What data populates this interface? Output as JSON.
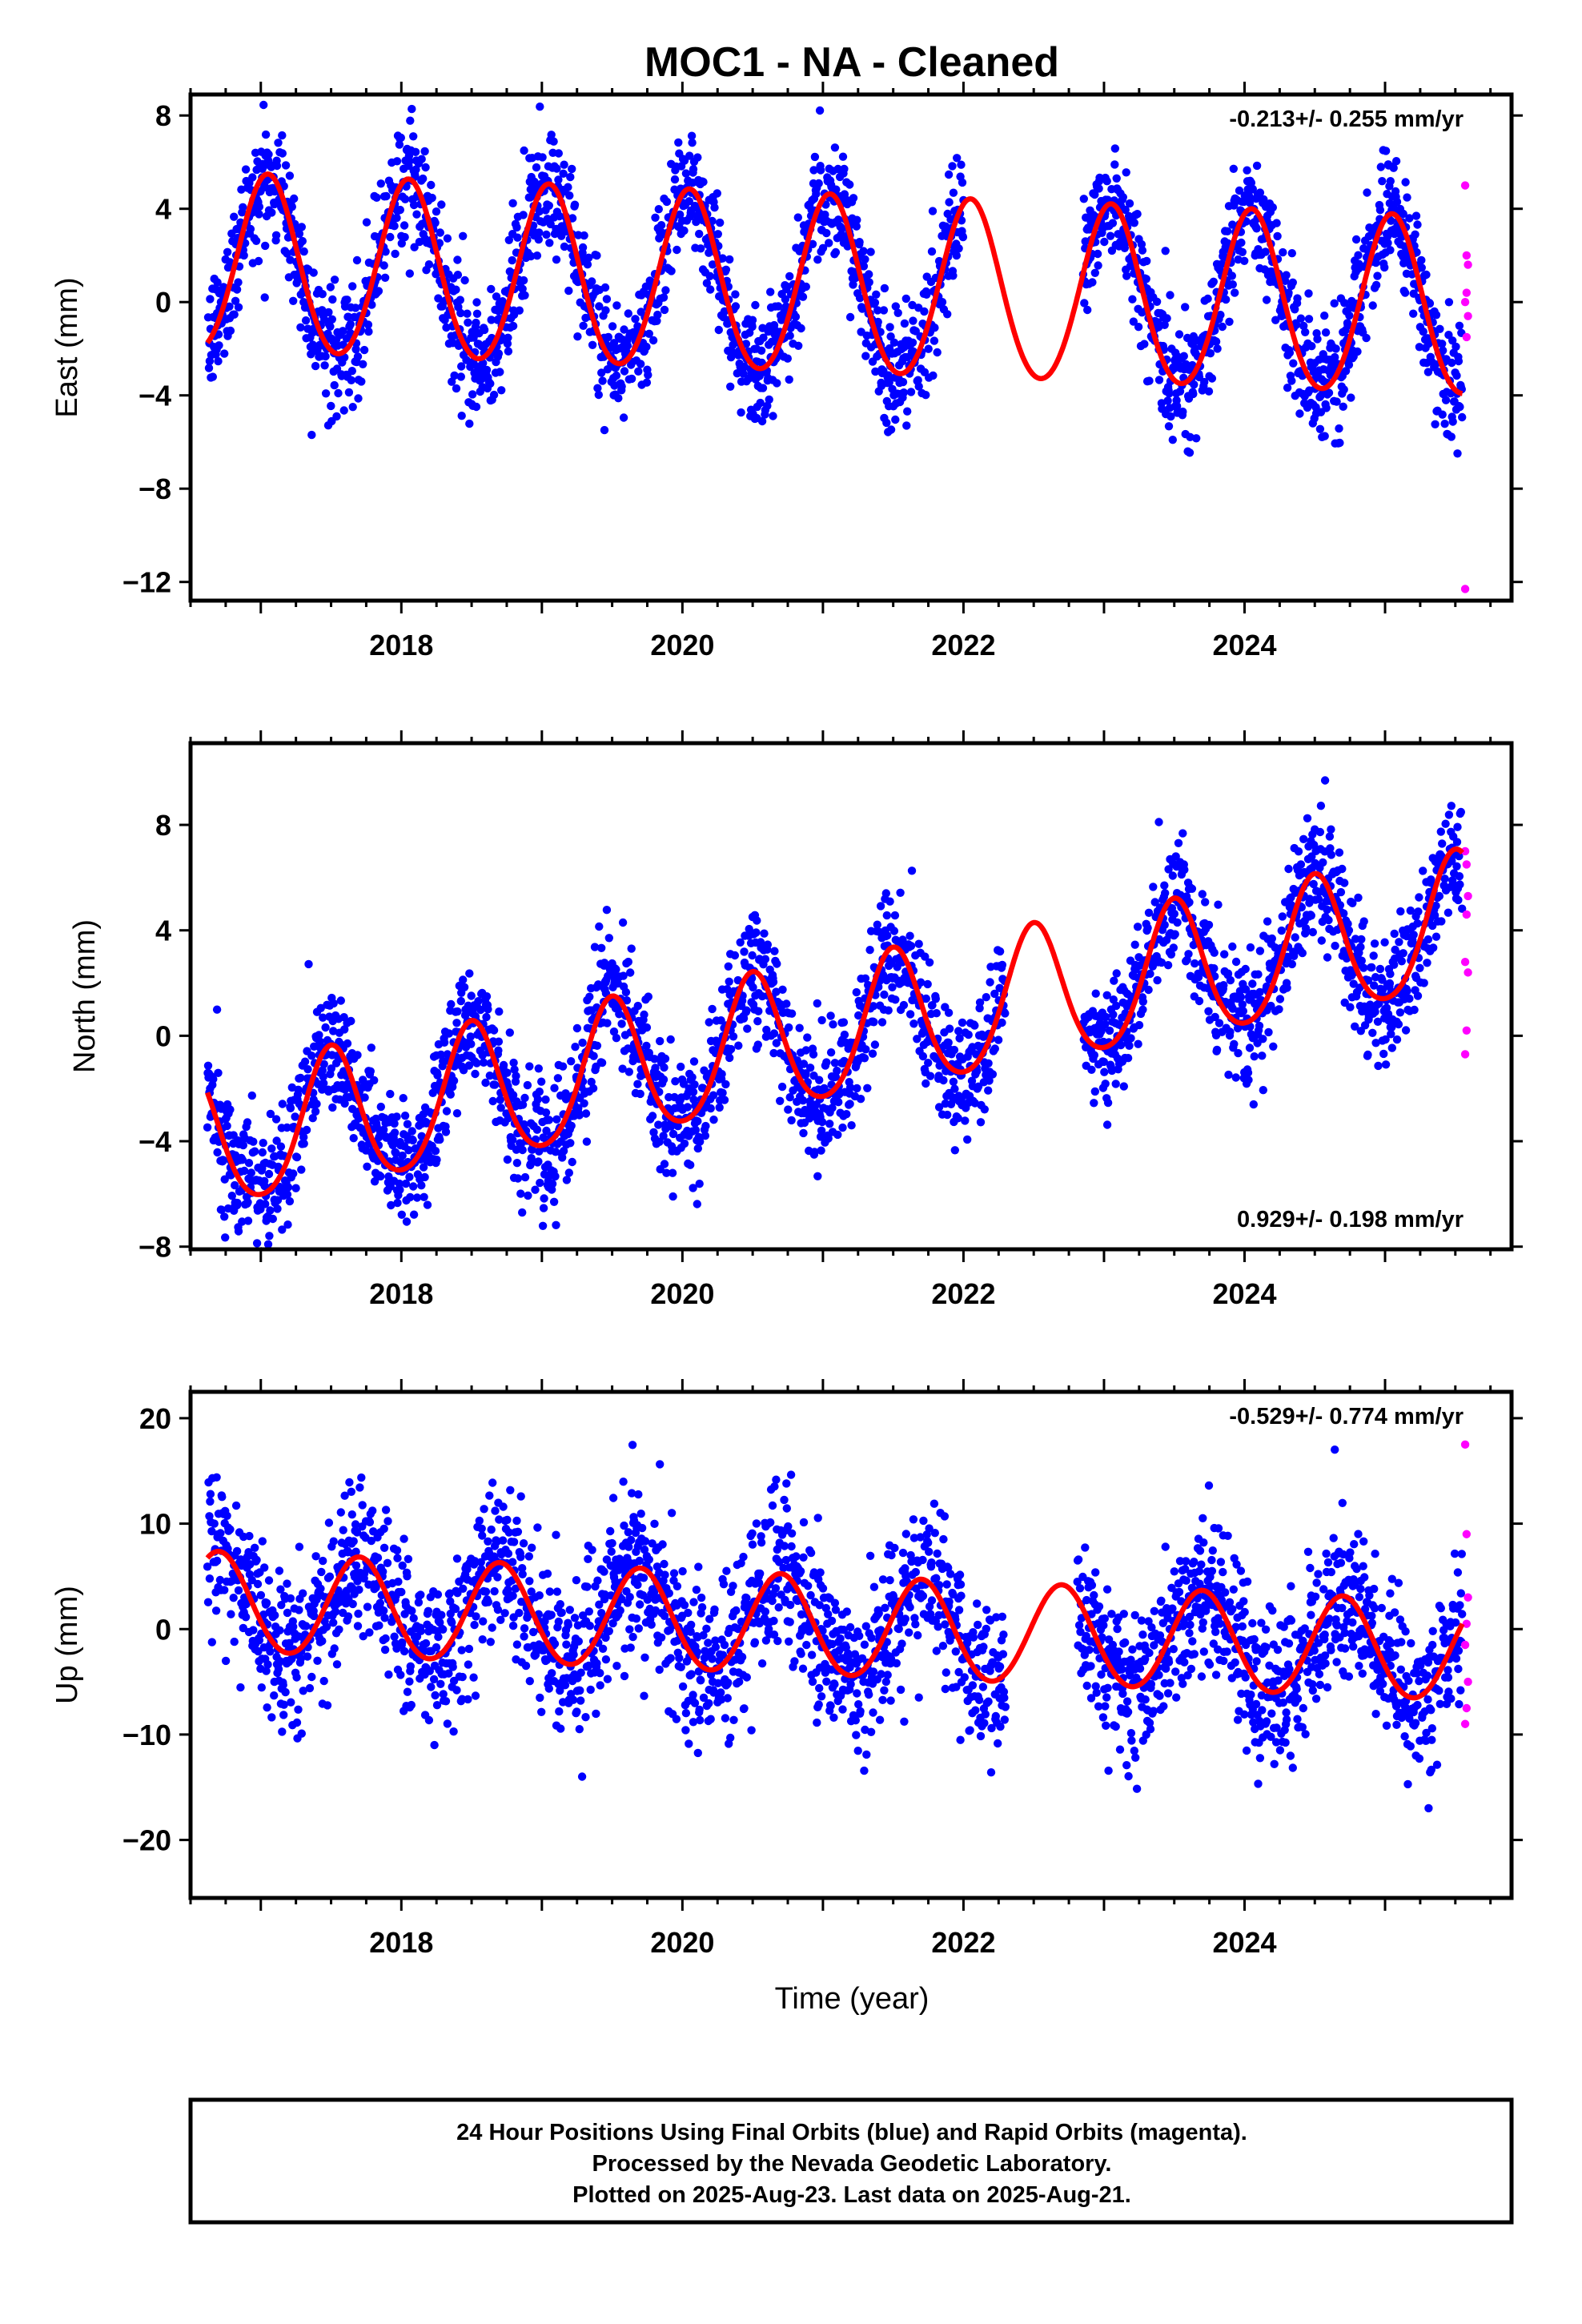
{
  "title": "MOC1  - NA - Cleaned",
  "xlabel": "Time (year)",
  "footer": {
    "line1": "24 Hour Positions Using Final Orbits (blue) and Rapid Orbits (magenta).",
    "line2": "Processed by the Nevada Geodetic Laboratory.",
    "line3": "Plotted on 2025-Aug-23. Last data on 2025-Aug-21."
  },
  "colors": {
    "final": "#0000ff",
    "rapid": "#ff00ff",
    "model": "#ff0000",
    "frame": "#000000"
  },
  "chart_data": [
    {
      "type": "scatter",
      "ylabel": "East (mm)",
      "rate_label": "-0.213+/- 0.255 mm/yr",
      "rate_position": "top-right",
      "xlim": [
        2016.5,
        2025.9
      ],
      "ylim": [
        -12.8,
        8.9
      ],
      "xticks": [
        2018,
        2020,
        2022,
        2024
      ],
      "yticks": [
        8,
        4,
        0,
        -4,
        -8,
        -12
      ],
      "data_range": [
        2016.62,
        2025.55
      ],
      "gap": [
        2022.0,
        2022.85
      ],
      "model": {
        "offset": 0.6,
        "trend": -0.213,
        "trend_ref": 2021,
        "annual_amp": 3.8,
        "annual_peak": 2017.05,
        "semiannual_amp": 0.25,
        "amp_drift": 0.0
      },
      "noise_sd": 1.3,
      "rapid_points": [
        {
          "x": 2025.57,
          "y": 5.0
        },
        {
          "x": 2025.58,
          "y": 2.0
        },
        {
          "x": 2025.59,
          "y": 1.6
        },
        {
          "x": 2025.58,
          "y": 0.4
        },
        {
          "x": 2025.57,
          "y": 0.0
        },
        {
          "x": 2025.59,
          "y": -0.6
        },
        {
          "x": 2025.58,
          "y": -1.5
        },
        {
          "x": 2025.57,
          "y": -12.3
        }
      ]
    },
    {
      "type": "scatter",
      "ylabel": "North (mm)",
      "rate_label": "0.929+/- 0.198 mm/yr",
      "rate_position": "bottom-right",
      "xlim": [
        2016.5,
        2025.9
      ],
      "ylim": [
        -8.1,
        11.1
      ],
      "xticks": [
        2018,
        2020,
        2022,
        2024
      ],
      "yticks": [
        8,
        4,
        0,
        -4,
        -8
      ],
      "data_range": [
        2016.62,
        2025.55
      ],
      "gap": [
        2022.3,
        2022.85
      ],
      "model": {
        "offset": 0.0,
        "trend": 0.929,
        "trend_ref": 2021,
        "annual_amp": 2.6,
        "annual_peak": 2017.5,
        "semiannual_amp": 0.3,
        "amp_drift": 0.0
      },
      "noise_sd": 1.2,
      "rapid_points": [
        {
          "x": 2025.57,
          "y": 7.0
        },
        {
          "x": 2025.58,
          "y": 6.5
        },
        {
          "x": 2025.59,
          "y": 5.3
        },
        {
          "x": 2025.58,
          "y": 4.6
        },
        {
          "x": 2025.57,
          "y": 2.8
        },
        {
          "x": 2025.59,
          "y": 2.4
        },
        {
          "x": 2025.58,
          "y": 0.2
        },
        {
          "x": 2025.57,
          "y": -0.7
        }
      ]
    },
    {
      "type": "scatter",
      "ylabel": "Up (mm)",
      "rate_label": "-0.529+/- 0.774 mm/yr",
      "rate_position": "top-right",
      "xlim": [
        2016.5,
        2025.9
      ],
      "ylim": [
        -25.5,
        22.5
      ],
      "xticks": [
        2018,
        2020,
        2022,
        2024
      ],
      "yticks": [
        20,
        10,
        0,
        -10,
        -20
      ],
      "data_range": [
        2016.62,
        2025.55
      ],
      "gap": [
        2022.3,
        2022.8
      ],
      "model": {
        "offset": 0.2,
        "trend": -0.529,
        "trend_ref": 2021,
        "annual_amp": 4.7,
        "annual_peak": 2016.7,
        "semiannual_amp": 0.2,
        "amp_drift": 0.0
      },
      "noise_sd": 3.8,
      "rapid_points": [
        {
          "x": 2025.57,
          "y": 17.5
        },
        {
          "x": 2025.58,
          "y": 9.0
        },
        {
          "x": 2025.59,
          "y": 3.0
        },
        {
          "x": 2025.58,
          "y": 0.5
        },
        {
          "x": 2025.57,
          "y": -1.5
        },
        {
          "x": 2025.59,
          "y": -5.0
        },
        {
          "x": 2025.58,
          "y": -7.5
        },
        {
          "x": 2025.57,
          "y": -9.0
        }
      ]
    }
  ]
}
